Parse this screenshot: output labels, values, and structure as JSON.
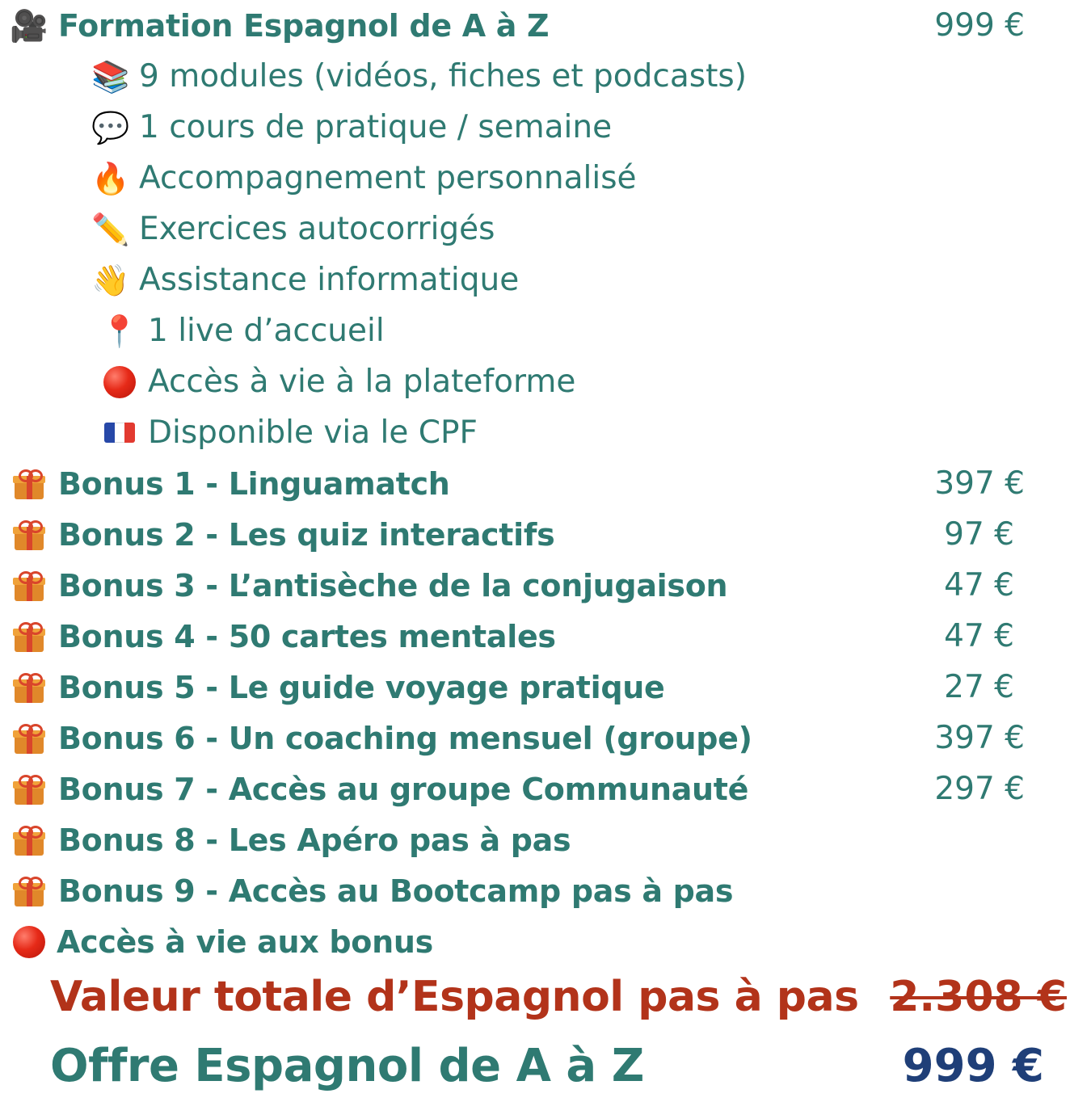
{
  "main_item": {
    "icon": "movie-camera-icon",
    "label": "Formation Espagnol de A à Z",
    "price": "999 €"
  },
  "features": [
    {
      "icon": "books-icon",
      "glyph": "📚",
      "label": "9 modules (vidéos, fiches et podcasts)"
    },
    {
      "icon": "speech-bubble-icon",
      "glyph": "💬",
      "label": "1 cours de pratique / semaine"
    },
    {
      "icon": "fire-icon",
      "glyph": "🔥",
      "label": "Accompagnement personnalisé"
    },
    {
      "icon": "pencil-icon",
      "glyph": "✏️",
      "label": "Exercices autocorrigés"
    },
    {
      "icon": "waving-hand-icon",
      "glyph": "👋",
      "label": "Assistance informatique"
    },
    {
      "icon": "pushpin-icon",
      "glyph": "📍",
      "label": "1 live d’accueil"
    },
    {
      "icon": "red-circle-icon",
      "glyph": "",
      "label": "Accès à vie à la plateforme"
    },
    {
      "icon": "french-flag-icon",
      "glyph": "",
      "label": "Disponible via le CPF"
    }
  ],
  "bonuses": [
    {
      "icon": "gift-icon",
      "label": "Bonus 1 - Linguamatch",
      "price": "397 €"
    },
    {
      "icon": "gift-icon",
      "label": "Bonus 2 - Les quiz interactifs",
      "price": "97 €"
    },
    {
      "icon": "gift-icon",
      "label": " Bonus 3 - L’antisèche de la conjugaison",
      "price": "47 €"
    },
    {
      "icon": "gift-icon",
      "label": "Bonus 4 - 50 cartes mentales",
      "price": "47 €"
    },
    {
      "icon": "gift-icon",
      "label": "Bonus 5 - Le guide voyage pratique",
      "price": "27 €"
    },
    {
      "icon": "gift-icon",
      "label": "Bonus 6 - Un coaching mensuel (groupe)",
      "price": "397 €"
    },
    {
      "icon": "gift-icon",
      "label": " Bonus 7 - Accès au groupe Communauté",
      "price": "297 €"
    },
    {
      "icon": "gift-icon",
      "label": " Bonus 8 - Les Apéro pas à pas",
      "price": ""
    },
    {
      "icon": "gift-icon",
      "label": "Bonus 9 - Accès au Bootcamp pas à pas",
      "price": ""
    }
  ],
  "lifetime_bonus": {
    "icon": "red-circle-icon",
    "label": "Accès à vie aux bonus"
  },
  "total": {
    "label": "Valeur totale d’Espagnol pas à pas",
    "price": "2.308 €"
  },
  "offer": {
    "label": "Offre Espagnol de A à Z",
    "price": "999 €"
  },
  "colors": {
    "teal": "#2f7a72",
    "red": "#b2331a",
    "navy": "#1f3f78"
  }
}
